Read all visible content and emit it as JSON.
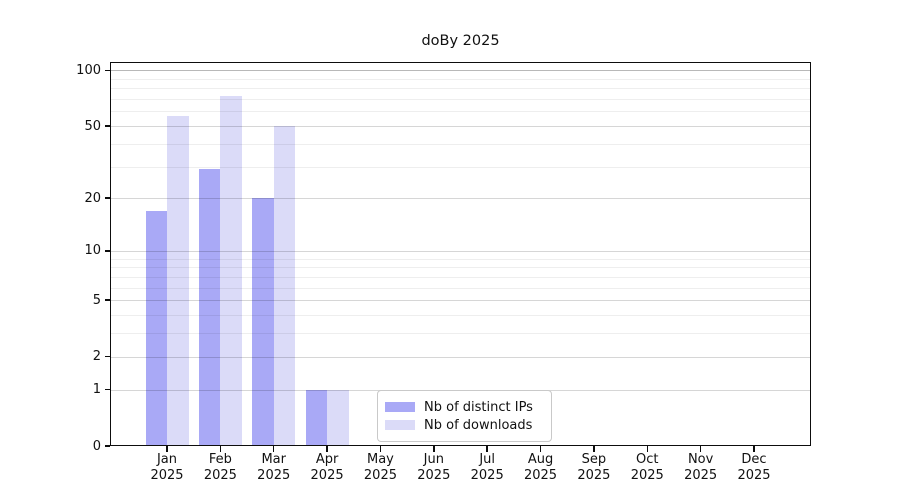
{
  "figure": {
    "background": "#ffffff"
  },
  "chart_data": {
    "type": "bar",
    "title": "doBy 2025",
    "categories": [
      "Jan",
      "Feb",
      "Mar",
      "Apr",
      "May",
      "Jun",
      "Jul",
      "Aug",
      "Sep",
      "Oct",
      "Nov",
      "Dec"
    ],
    "category_year": "2025",
    "series": [
      {
        "name": "Nb of distinct IPs",
        "color": "#a9a9f6",
        "values": [
          17,
          29,
          20,
          1,
          0,
          0,
          0,
          0,
          0,
          0,
          0,
          0
        ]
      },
      {
        "name": "Nb of downloads",
        "color": "#dbdbf8",
        "values": [
          57,
          73,
          50,
          1,
          0,
          0,
          0,
          0,
          0,
          0,
          0,
          0
        ]
      }
    ],
    "yscale": "log1p",
    "ylim": [
      0,
      111
    ],
    "yticks": [
      0,
      1,
      2,
      5,
      10,
      20,
      50,
      100
    ],
    "minor_yticks": [
      3,
      4,
      6,
      7,
      8,
      9,
      30,
      40,
      60,
      70,
      80,
      90
    ],
    "xlabel": "",
    "ylabel": "",
    "grid": true,
    "legend_position": "lower center"
  }
}
